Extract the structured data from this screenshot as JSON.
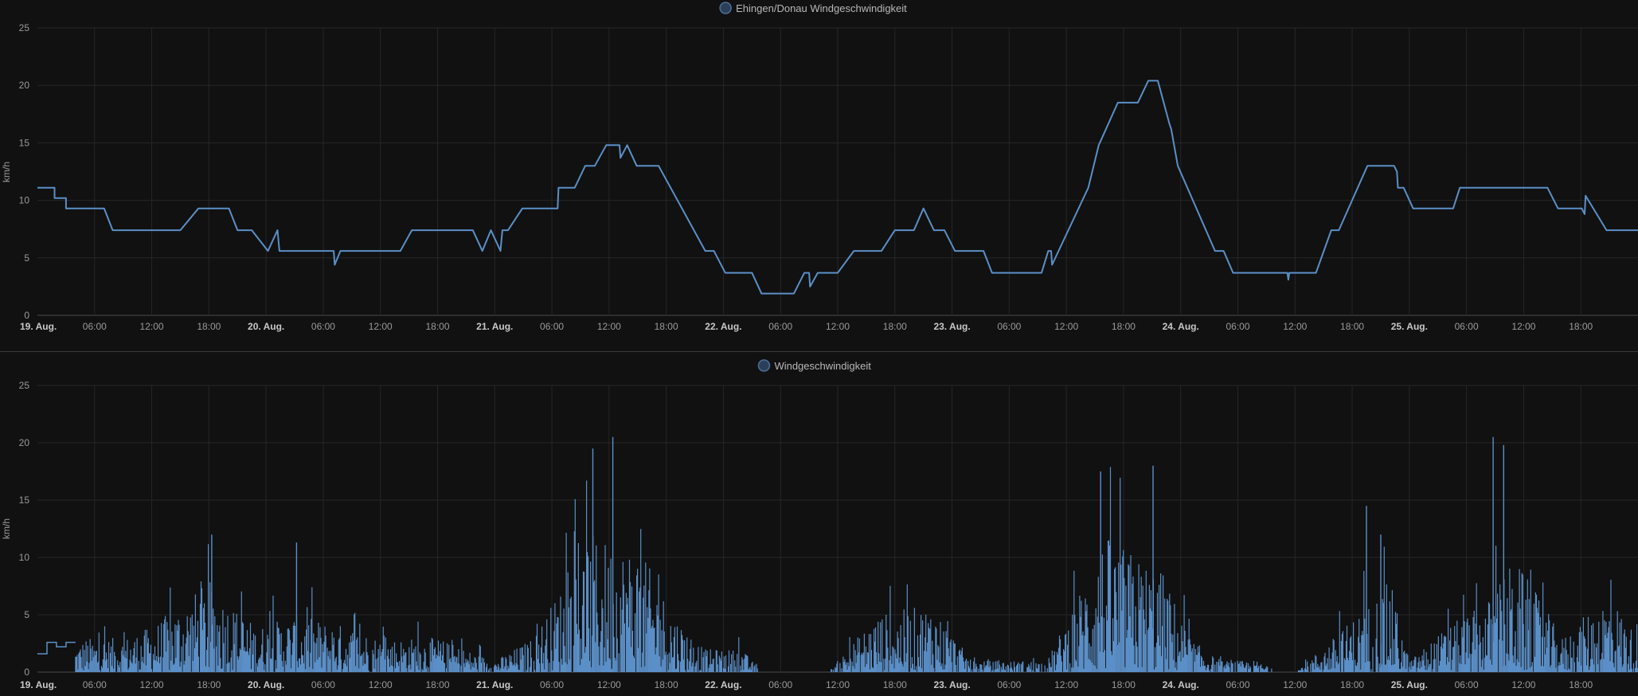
{
  "chart_data": [
    {
      "type": "line",
      "legend": {
        "label": "Ehingen/Donau Windgeschwindigkeit",
        "position": "top-center"
      },
      "ylabel": "km/h",
      "ylim": [
        0,
        25
      ],
      "yticks": [
        0,
        5,
        10,
        15,
        20,
        25
      ],
      "xlim_hours": [
        0,
        168
      ],
      "x_tick_labels": [
        "19. Aug.",
        "06:00",
        "12:00",
        "18:00",
        "20. Aug.",
        "06:00",
        "12:00",
        "18:00",
        "21. Aug.",
        "06:00",
        "12:00",
        "18:00",
        "22. Aug.",
        "06:00",
        "12:00",
        "18:00",
        "23. Aug.",
        "06:00",
        "12:00",
        "18:00",
        "24. Aug.",
        "06:00",
        "12:00",
        "18:00",
        "25. Aug.",
        "06:00",
        "12:00",
        "18:00"
      ],
      "grid": true,
      "color": "#5b8fc7",
      "series": [
        {
          "interpolation": "linear",
          "points": [
            [
              0,
              11.1
            ],
            [
              1.8,
              11.1
            ],
            [
              1.8,
              10.2
            ],
            [
              3,
              10.2
            ],
            [
              3,
              9.3
            ],
            [
              7,
              9.3
            ],
            [
              7.9,
              7.4
            ],
            [
              15,
              7.4
            ],
            [
              16.9,
              9.3
            ],
            [
              20.1,
              9.3
            ],
            [
              21,
              7.4
            ],
            [
              22.5,
              7.4
            ],
            [
              24.2,
              5.6
            ],
            [
              25.2,
              7.4
            ],
            [
              25.4,
              5.6
            ],
            [
              31.1,
              5.6
            ],
            [
              31.2,
              4.4
            ],
            [
              31.8,
              5.6
            ],
            [
              38.1,
              5.6
            ],
            [
              39.3,
              7.4
            ],
            [
              45.7,
              7.4
            ],
            [
              46.7,
              5.6
            ],
            [
              47.6,
              7.4
            ],
            [
              48.6,
              5.6
            ],
            [
              48.8,
              7.4
            ],
            [
              49.4,
              7.4
            ],
            [
              50.9,
              9.3
            ],
            [
              54.6,
              9.3
            ],
            [
              54.7,
              11.1
            ],
            [
              56.4,
              11.1
            ],
            [
              57.5,
              13
            ],
            [
              58.5,
              13
            ],
            [
              59.7,
              14.8
            ],
            [
              61.1,
              14.8
            ],
            [
              61.2,
              13.7
            ],
            [
              61.9,
              14.8
            ],
            [
              62.9,
              13
            ],
            [
              65.2,
              13
            ],
            [
              70.1,
              5.6
            ],
            [
              71,
              5.6
            ],
            [
              72.2,
              3.7
            ],
            [
              75,
              3.7
            ],
            [
              76,
              1.9
            ],
            [
              79.4,
              1.9
            ],
            [
              80.5,
              3.7
            ],
            [
              81,
              3.7
            ],
            [
              81.1,
              2.5
            ],
            [
              81.9,
              3.7
            ],
            [
              84,
              3.7
            ],
            [
              85.7,
              5.6
            ],
            [
              88.6,
              5.6
            ],
            [
              90,
              7.4
            ],
            [
              92,
              7.4
            ],
            [
              93,
              9.3
            ],
            [
              94.1,
              7.4
            ],
            [
              95.2,
              7.4
            ],
            [
              96.3,
              5.6
            ],
            [
              99.3,
              5.6
            ],
            [
              100.2,
              3.7
            ],
            [
              105.4,
              3.7
            ],
            [
              106.1,
              5.6
            ],
            [
              106.4,
              5.6
            ],
            [
              106.5,
              4.4
            ],
            [
              110.3,
              11.1
            ],
            [
              111.4,
              14.8
            ],
            [
              113.4,
              18.5
            ],
            [
              115.5,
              18.5
            ],
            [
              116.6,
              20.4
            ],
            [
              117.6,
              20.4
            ],
            [
              118.8,
              16.7
            ],
            [
              119,
              16.2
            ],
            [
              119.7,
              13
            ],
            [
              123.6,
              5.6
            ],
            [
              124.5,
              5.6
            ],
            [
              125.5,
              3.7
            ],
            [
              131.2,
              3.7
            ],
            [
              131.3,
              3.1
            ],
            [
              131.4,
              3.7
            ],
            [
              134.2,
              3.7
            ],
            [
              135.8,
              7.4
            ],
            [
              136.6,
              7.4
            ],
            [
              139.6,
              13
            ],
            [
              142.4,
              13
            ],
            [
              142.7,
              12.5
            ],
            [
              142.8,
              11.1
            ],
            [
              143.4,
              11.1
            ],
            [
              144.4,
              9.3
            ],
            [
              148.6,
              9.3
            ],
            [
              149.3,
              11.1
            ],
            [
              158.5,
              11.1
            ],
            [
              159.6,
              9.3
            ],
            [
              162.1,
              9.3
            ],
            [
              162.4,
              8.8
            ],
            [
              162.5,
              10.4
            ],
            [
              164.7,
              7.4
            ],
            [
              168,
              7.4
            ]
          ]
        }
      ]
    },
    {
      "type": "bar",
      "legend": {
        "label": "Windgeschwindigkeit",
        "position": "top-center"
      },
      "ylabel": "km/h",
      "ylim": [
        0,
        25
      ],
      "yticks": [
        0,
        5,
        10,
        15,
        20,
        25
      ],
      "xlim_hours": [
        0,
        168
      ],
      "x_tick_labels": [
        "19. Aug.",
        "06:00",
        "12:00",
        "18:00",
        "20. Aug.",
        "06:00",
        "12:00",
        "18:00",
        "21. Aug.",
        "06:00",
        "12:00",
        "18:00",
        "22. Aug.",
        "06:00",
        "12:00",
        "18:00",
        "23. Aug.",
        "06:00",
        "12:00",
        "18:00",
        "24. Aug.",
        "06:00",
        "12:00",
        "18:00",
        "25. Aug.",
        "06:00",
        "12:00",
        "18:00"
      ],
      "grid": true,
      "color": "#5b8fc7",
      "series": [
        {
          "rendering": "dense high-frequency signal (many samples per hour, rendered as thin bars)",
          "step_profile": [
            [
              0,
              1.6
            ],
            [
              1,
              1.6
            ],
            [
              1,
              2.6
            ],
            [
              2,
              2.6
            ],
            [
              2,
              2.2
            ],
            [
              3,
              2.2
            ],
            [
              3,
              2.6
            ],
            [
              4,
              2.6
            ]
          ],
          "envelope_peaks": [
            [
              0,
              0
            ],
            [
              5,
              3
            ],
            [
              9,
              3
            ],
            [
              12,
              4
            ],
            [
              18,
              8
            ],
            [
              23,
              4
            ],
            [
              27,
              5
            ],
            [
              33,
              4
            ],
            [
              36,
              3
            ],
            [
              42,
              3
            ],
            [
              48,
              1
            ],
            [
              52,
              3
            ],
            [
              58,
              12
            ],
            [
              63,
              11
            ],
            [
              67,
              5
            ],
            [
              70,
              2
            ],
            [
              74,
              2
            ],
            [
              76,
              0
            ],
            [
              83,
              0
            ],
            [
              88,
              5
            ],
            [
              94,
              6
            ],
            [
              98,
              1
            ],
            [
              106,
              1
            ],
            [
              112,
              12
            ],
            [
              118,
              9
            ],
            [
              121,
              3
            ],
            [
              124,
              1
            ],
            [
              128,
              1
            ],
            [
              130,
              0
            ],
            [
              132,
              0
            ],
            [
              136,
              3
            ],
            [
              142,
              8
            ],
            [
              144,
              1
            ],
            [
              148,
              4
            ],
            [
              152,
              6
            ],
            [
              155,
              10
            ],
            [
              158,
              6
            ],
            [
              160,
              3
            ],
            [
              165,
              7
            ],
            [
              168,
              3
            ]
          ],
          "observed_maxima": [
            [
              58.3,
              19.5
            ],
            [
              60.4,
              20.5
            ],
            [
              111.6,
              17.5
            ],
            [
              117.1,
              18
            ],
            [
              152.8,
              20.5
            ],
            [
              153.9,
              19.8
            ],
            [
              139.5,
              14.5
            ],
            [
              141,
              12
            ],
            [
              18.3,
              12
            ],
            [
              27.2,
              11.3
            ]
          ]
        }
      ]
    }
  ]
}
